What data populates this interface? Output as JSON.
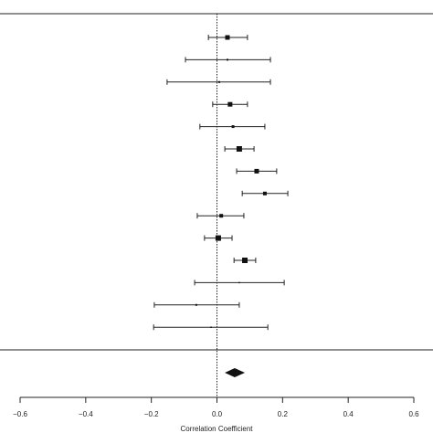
{
  "chart_data": {
    "type": "forest",
    "x_label": "Correlation Coefficient",
    "xlim": [
      -0.6,
      0.6
    ],
    "xticks": [
      {
        "value": -0.6,
        "label": "−0.6"
      },
      {
        "value": -0.4,
        "label": "−0.4"
      },
      {
        "value": -0.2,
        "label": "−0.2"
      },
      {
        "value": 0,
        "label": "0.0"
      },
      0.2,
      0.4,
      0.6
    ],
    "reference_line": 0,
    "color": "#111111",
    "estimates": [
      0.032,
      0.032,
      0.007,
      0.04,
      0.049,
      0.068,
      0.121,
      0.146,
      0.013,
      0.004,
      0.085,
      0.068,
      -0.063,
      -0.018
    ],
    "lower": [
      -0.026,
      -0.096,
      -0.152,
      -0.013,
      -0.052,
      0.024,
      0.06,
      0.077,
      -0.06,
      -0.038,
      0.052,
      -0.068,
      -0.191,
      -0.193
    ],
    "upper": [
      0.093,
      0.163,
      0.163,
      0.093,
      0.146,
      0.113,
      0.182,
      0.216,
      0.082,
      0.046,
      0.118,
      0.205,
      0.068,
      0.155
    ],
    "weights": [
      5,
      2,
      2,
      5,
      3,
      6,
      5,
      4,
      4,
      6,
      6,
      1.5,
      2,
      1.5
    ],
    "summary": {
      "estimate": 0.054,
      "lower": 0.024,
      "upper": 0.085
    }
  }
}
